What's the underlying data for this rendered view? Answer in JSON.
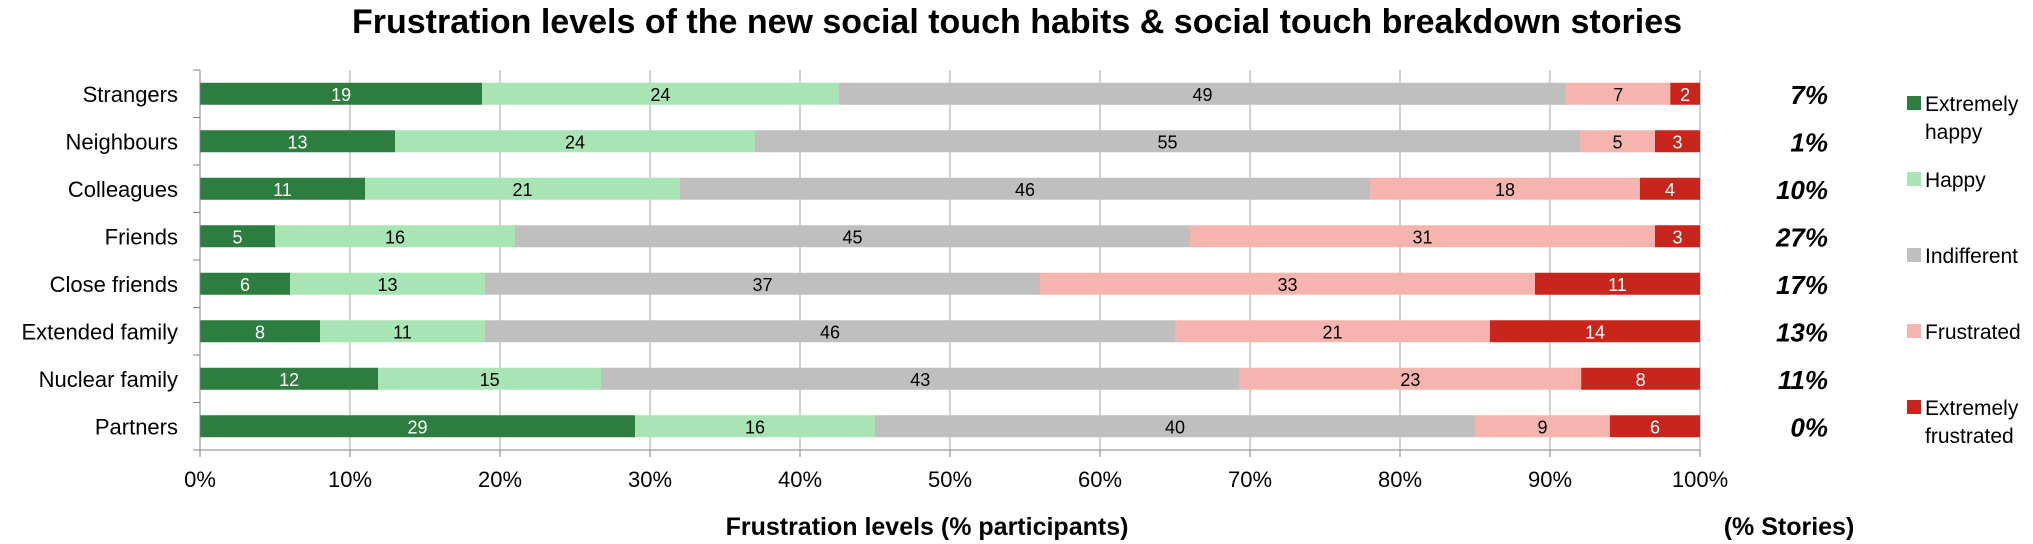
{
  "chart_data": {
    "type": "bar",
    "orientation": "horizontal",
    "stacked": "percent",
    "title": "Frustration levels of the new social touch habits & social touch breakdown stories",
    "xlabel": "Frustration levels (% participants)",
    "stories_label": "(% Stories)",
    "xlim": [
      0,
      100
    ],
    "x_ticks": [
      "0%",
      "10%",
      "20%",
      "30%",
      "40%",
      "50%",
      "60%",
      "70%",
      "80%",
      "90%",
      "100%"
    ],
    "grid": true,
    "legend_position": "right",
    "categories": [
      "Strangers",
      "Neighbours",
      "Colleagues",
      "Friends",
      "Close friends",
      "Extended family",
      "Nuclear family",
      "Partners"
    ],
    "series": [
      {
        "name": "Extremely happy",
        "legend_lines": [
          "Extremely",
          "happy"
        ],
        "color": "#2e7d40",
        "label_color": "#ffffff",
        "values": [
          19,
          13,
          11,
          5,
          6,
          8,
          12,
          29
        ]
      },
      {
        "name": "Happy",
        "legend_lines": [
          "Happy"
        ],
        "color": "#a8e4b4",
        "label_color": "#000000",
        "values": [
          24,
          24,
          21,
          16,
          13,
          11,
          15,
          16
        ]
      },
      {
        "name": "Indifferent",
        "legend_lines": [
          "Indifferent"
        ],
        "color": "#bfbfbf",
        "label_color": "#000000",
        "values": [
          49,
          55,
          46,
          45,
          37,
          46,
          43,
          40
        ]
      },
      {
        "name": "Frustrated",
        "legend_lines": [
          "Frustrated"
        ],
        "color": "#f5b5ae",
        "label_color": "#000000",
        "values": [
          7,
          5,
          18,
          31,
          33,
          21,
          23,
          9
        ]
      },
      {
        "name": "Extremely frustrated",
        "legend_lines": [
          "Extremely",
          "frustrated"
        ],
        "color": "#c8251c",
        "label_color": "#ffffff",
        "values": [
          2,
          3,
          4,
          3,
          11,
          14,
          8,
          6
        ]
      }
    ],
    "stories": [
      "7%",
      "1%",
      "10%",
      "27%",
      "17%",
      "13%",
      "11%",
      "0%"
    ]
  }
}
